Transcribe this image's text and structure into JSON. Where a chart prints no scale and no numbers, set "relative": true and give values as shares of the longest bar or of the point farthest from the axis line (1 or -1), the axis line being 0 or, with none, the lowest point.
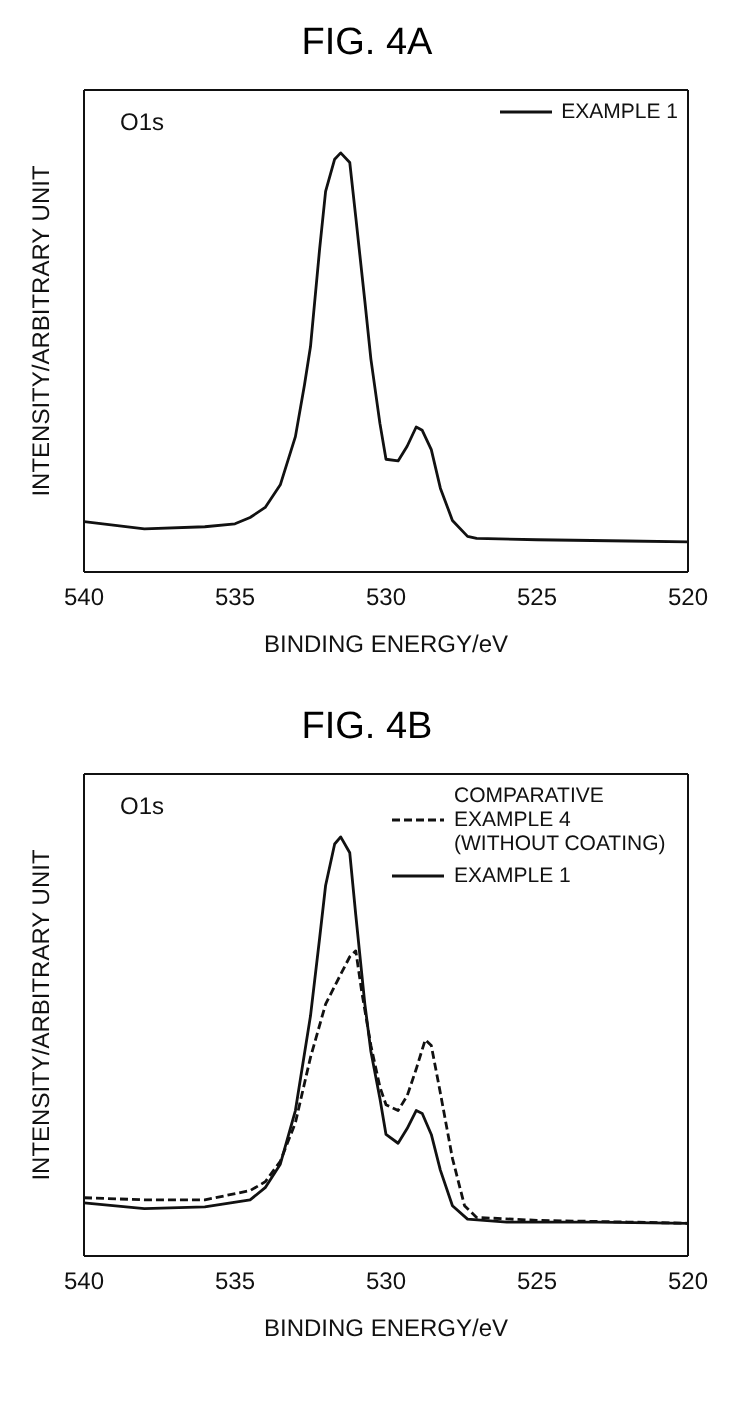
{
  "chart_data": [
    {
      "type": "line",
      "title": "FIG. 4A",
      "xlabel": "BINDING ENERGY/eV",
      "ylabel": "INTENSITY/ARBITRARY UNIT",
      "annotations": [
        "O1s"
      ],
      "relative": true,
      "xlim": [
        540,
        520
      ],
      "xticks": [
        540,
        535,
        530,
        525,
        520
      ],
      "tick_labels": "x",
      "legend": "top right",
      "marker": "none",
      "series": [
        {
          "name": "EXAMPLE 1",
          "color": "#111111",
          "line_style": "solid",
          "x": [
            540,
            538,
            536,
            535,
            534.5,
            534,
            533.5,
            533,
            532.7,
            532.5,
            532.2,
            532,
            531.7,
            531.5,
            531.2,
            531,
            530.7,
            530.5,
            530.2,
            530,
            529.6,
            529.3,
            529,
            528.8,
            528.5,
            528.2,
            527.8,
            527.3,
            527,
            525,
            522,
            520
          ],
          "values": [
            0.12,
            0.103,
            0.108,
            0.115,
            0.13,
            0.154,
            0.208,
            0.323,
            0.446,
            0.538,
            0.769,
            0.908,
            0.985,
            1,
            0.977,
            0.846,
            0.646,
            0.508,
            0.354,
            0.269,
            0.265,
            0.3,
            0.346,
            0.338,
            0.292,
            0.2,
            0.123,
            0.085,
            0.08,
            0.077,
            0.074,
            0.072
          ]
        }
      ]
    },
    {
      "type": "line",
      "title": "FIG. 4B",
      "xlabel": "BINDING ENERGY/eV",
      "ylabel": "INTENSITY/ARBITRARY UNIT",
      "annotations": [
        "O1s"
      ],
      "relative": true,
      "xlim": [
        540,
        520
      ],
      "xticks": [
        540,
        535,
        530,
        525,
        520
      ],
      "tick_labels": "x",
      "legend": "top right",
      "marker": "none",
      "series": [
        {
          "name": "COMPARATIVE EXAMPLE 4 (WITHOUT COATING)",
          "color": "#111111",
          "line_style": "dashed",
          "x": [
            540,
            538,
            536,
            534.5,
            534,
            533.5,
            533,
            532.5,
            532,
            531.5,
            531.2,
            531,
            530.8,
            530.5,
            530.2,
            530,
            529.6,
            529.3,
            529,
            528.7,
            528.5,
            528.2,
            527.8,
            527.4,
            527,
            525,
            522,
            520
          ],
          "values": [
            0.139,
            0.134,
            0.134,
            0.156,
            0.177,
            0.226,
            0.318,
            0.474,
            0.601,
            0.672,
            0.714,
            0.728,
            0.629,
            0.502,
            0.403,
            0.361,
            0.347,
            0.382,
            0.446,
            0.516,
            0.502,
            0.389,
            0.233,
            0.12,
            0.092,
            0.085,
            0.081,
            0.078
          ]
        },
        {
          "name": "EXAMPLE 1",
          "color": "#111111",
          "line_style": "solid",
          "x": [
            540,
            538,
            536,
            534.5,
            534,
            533.5,
            533,
            532.5,
            532.2,
            532,
            531.7,
            531.5,
            531.2,
            531,
            530.7,
            530.5,
            530.2,
            530,
            529.6,
            529.3,
            529,
            528.8,
            528.5,
            528.2,
            527.8,
            527.3,
            526,
            523,
            520
          ],
          "values": [
            0.127,
            0.113,
            0.117,
            0.134,
            0.163,
            0.219,
            0.347,
            0.573,
            0.757,
            0.884,
            0.983,
            1,
            0.962,
            0.813,
            0.601,
            0.488,
            0.375,
            0.29,
            0.269,
            0.304,
            0.347,
            0.34,
            0.29,
            0.205,
            0.12,
            0.088,
            0.081,
            0.081,
            0.078
          ]
        }
      ]
    }
  ]
}
